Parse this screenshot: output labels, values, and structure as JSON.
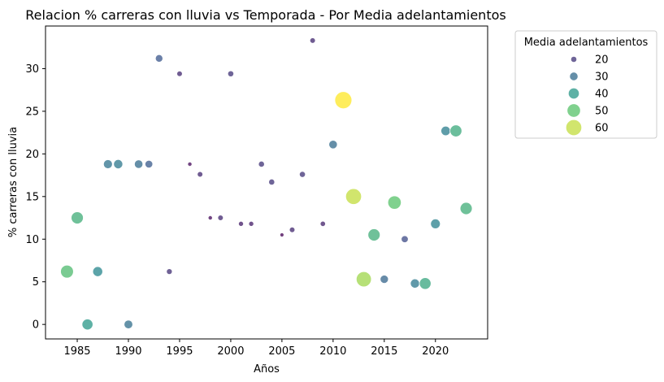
{
  "chart_data": {
    "type": "scatter",
    "title": "Relacion % carreras con lluvia vs Temporada - Por Media adelantamientos",
    "xlabel": "Años",
    "ylabel": "% carreras con lluvia",
    "xlim": [
      1981.9,
      2025.1
    ],
    "ylim": [
      -1.7,
      35
    ],
    "xticks": [
      1985,
      1990,
      1995,
      2000,
      2005,
      2010,
      2015,
      2020
    ],
    "yticks": [
      0,
      5,
      10,
      15,
      20,
      25,
      30
    ],
    "grid": false,
    "legend": {
      "title": "Media adelantamientos",
      "placement": "outside-right-top",
      "entries": [
        {
          "label": "20",
          "value": 20
        },
        {
          "label": "30",
          "value": 30
        },
        {
          "label": "40",
          "value": 40
        },
        {
          "label": "50",
          "value": 50
        },
        {
          "label": "60",
          "value": 60
        }
      ]
    },
    "color_scale": {
      "min": 12,
      "max": 65,
      "colormap": "viridis"
    },
    "points": [
      {
        "x": 1984,
        "y": 6.2,
        "size": 48
      },
      {
        "x": 1985,
        "y": 12.5,
        "size": 45
      },
      {
        "x": 1986,
        "y": 0,
        "size": 40
      },
      {
        "x": 1987,
        "y": 6.2,
        "size": 36
      },
      {
        "x": 1988,
        "y": 18.8,
        "size": 32
      },
      {
        "x": 1989,
        "y": 18.8,
        "size": 33
      },
      {
        "x": 1990,
        "y": 0,
        "size": 31
      },
      {
        "x": 1991,
        "y": 18.8,
        "size": 30
      },
      {
        "x": 1992,
        "y": 18.8,
        "size": 27
      },
      {
        "x": 1993,
        "y": 31.2,
        "size": 26
      },
      {
        "x": 1994,
        "y": 6.2,
        "size": 19
      },
      {
        "x": 1995,
        "y": 29.4,
        "size": 18
      },
      {
        "x": 1996,
        "y": 18.8,
        "size": 13
      },
      {
        "x": 1997,
        "y": 17.6,
        "size": 18
      },
      {
        "x": 1998,
        "y": 12.5,
        "size": 13
      },
      {
        "x": 1999,
        "y": 12.5,
        "size": 18
      },
      {
        "x": 2000,
        "y": 29.4,
        "size": 20
      },
      {
        "x": 2001,
        "y": 11.8,
        "size": 16
      },
      {
        "x": 2002,
        "y": 11.8,
        "size": 16
      },
      {
        "x": 2003,
        "y": 18.8,
        "size": 20
      },
      {
        "x": 2004,
        "y": 16.7,
        "size": 20
      },
      {
        "x": 2005,
        "y": 10.5,
        "size": 12
      },
      {
        "x": 2006,
        "y": 11.1,
        "size": 18
      },
      {
        "x": 2007,
        "y": 17.6,
        "size": 20
      },
      {
        "x": 2008,
        "y": 33.3,
        "size": 18
      },
      {
        "x": 2009,
        "y": 11.8,
        "size": 17
      },
      {
        "x": 2010,
        "y": 21.1,
        "size": 30
      },
      {
        "x": 2011,
        "y": 26.3,
        "size": 65
      },
      {
        "x": 2012,
        "y": 15.0,
        "size": 60
      },
      {
        "x": 2013,
        "y": 5.3,
        "size": 57
      },
      {
        "x": 2014,
        "y": 10.5,
        "size": 45
      },
      {
        "x": 2015,
        "y": 5.3,
        "size": 29
      },
      {
        "x": 2016,
        "y": 14.3,
        "size": 50
      },
      {
        "x": 2017,
        "y": 10.0,
        "size": 24
      },
      {
        "x": 2018,
        "y": 4.8,
        "size": 33
      },
      {
        "x": 2019,
        "y": 4.8,
        "size": 43
      },
      {
        "x": 2020,
        "y": 11.8,
        "size": 35
      },
      {
        "x": 2021,
        "y": 22.7,
        "size": 34
      },
      {
        "x": 2022,
        "y": 22.7,
        "size": 44
      },
      {
        "x": 2023,
        "y": 13.6,
        "size": 45
      }
    ]
  }
}
